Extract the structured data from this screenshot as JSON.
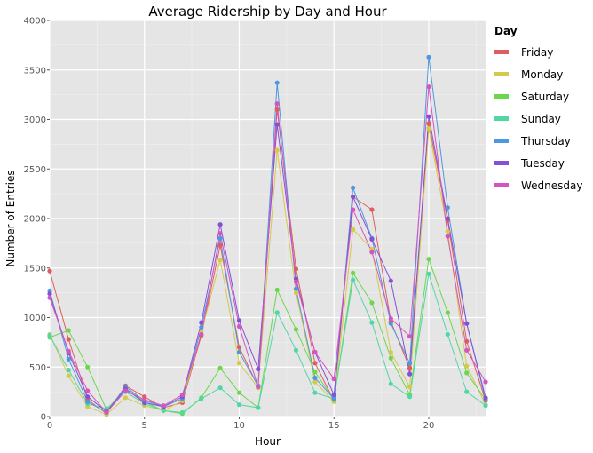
{
  "chart_data": {
    "type": "line",
    "title": "Average Ridership by Day and Hour",
    "xlabel": "Hour",
    "ylabel": "Number of Entries",
    "xlim": [
      0,
      23
    ],
    "ylim": [
      0,
      4000
    ],
    "x_ticks": [
      0,
      5,
      10,
      15,
      20
    ],
    "y_ticks": [
      0,
      500,
      1000,
      1500,
      2000,
      2500,
      3000,
      3500,
      4000
    ],
    "grid": true,
    "legend_title": "Day",
    "legend_position": "right",
    "x": [
      0,
      1,
      2,
      3,
      4,
      5,
      6,
      7,
      8,
      9,
      10,
      11,
      12,
      13,
      14,
      15,
      16,
      17,
      18,
      19,
      20,
      21,
      22,
      23
    ],
    "series": [
      {
        "name": "Friday",
        "color": "#e05d5d",
        "values": [
          1470,
          780,
          170,
          30,
          310,
          200,
          90,
          140,
          820,
          1730,
          700,
          300,
          3100,
          1490,
          540,
          160,
          2220,
          2090,
          960,
          490,
          2960,
          1980,
          760,
          160
        ]
      },
      {
        "name": "Monday",
        "color": "#d5c94a",
        "values": [
          830,
          410,
          100,
          20,
          190,
          110,
          60,
          160,
          850,
          1580,
          540,
          290,
          2690,
          1250,
          350,
          150,
          1890,
          1690,
          650,
          300,
          2910,
          1870,
          510,
          120
        ]
      },
      {
        "name": "Saturday",
        "color": "#6ad84a",
        "values": [
          800,
          870,
          500,
          70,
          280,
          150,
          60,
          30,
          190,
          490,
          240,
          90,
          1280,
          880,
          450,
          170,
          1450,
          1150,
          590,
          220,
          1590,
          1050,
          440,
          170
        ]
      },
      {
        "name": "Sunday",
        "color": "#4fd8a4",
        "values": [
          820,
          470,
          130,
          80,
          250,
          130,
          60,
          40,
          180,
          290,
          120,
          90,
          1050,
          670,
          240,
          180,
          1380,
          950,
          330,
          200,
          1440,
          830,
          250,
          110
        ]
      },
      {
        "name": "Thursday",
        "color": "#5098de",
        "values": [
          1270,
          580,
          150,
          40,
          300,
          160,
          100,
          180,
          900,
          1800,
          650,
          310,
          3370,
          1290,
          390,
          180,
          2310,
          1800,
          940,
          540,
          3630,
          2110,
          940,
          170
        ]
      },
      {
        "name": "Tuesday",
        "color": "#8550d8",
        "values": [
          1240,
          640,
          200,
          50,
          280,
          140,
          100,
          200,
          950,
          1940,
          970,
          480,
          2950,
          1390,
          650,
          220,
          2220,
          1790,
          1370,
          430,
          3030,
          2000,
          940,
          190
        ]
      },
      {
        "name": "Wednesday",
        "color": "#d455c2",
        "values": [
          1200,
          660,
          260,
          40,
          260,
          170,
          110,
          220,
          830,
          1850,
          910,
          300,
          3160,
          1360,
          650,
          380,
          2090,
          1660,
          990,
          810,
          3330,
          1820,
          670,
          350
        ]
      }
    ]
  }
}
